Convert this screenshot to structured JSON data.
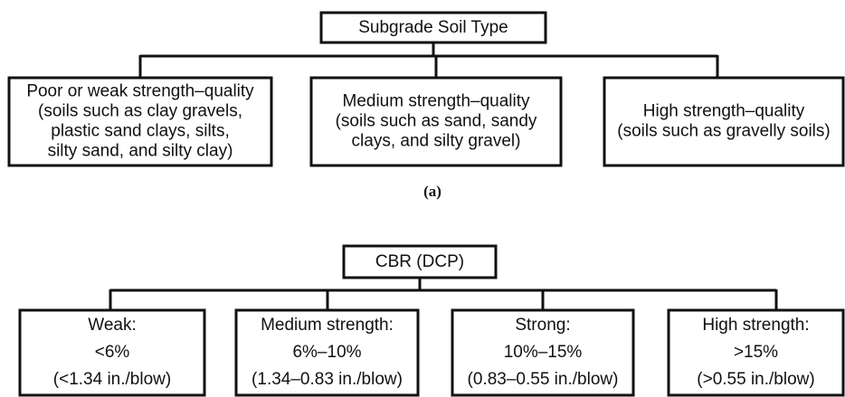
{
  "diagram_a": {
    "root": "Subgrade Soil Type",
    "children": [
      {
        "lines": [
          "Poor or weak strength–quality",
          "(soils such as clay gravels,",
          "plastic sand clays, silts,",
          "silty sand, and silty clay)"
        ]
      },
      {
        "lines": [
          "Medium strength–quality",
          "(soils such as sand, sandy",
          "clays, and silty gravel)"
        ]
      },
      {
        "lines": [
          "High strength–quality",
          "(soils such as gravelly soils)"
        ]
      }
    ],
    "caption": "(a)"
  },
  "diagram_b": {
    "root": "CBR (DCP)",
    "children": [
      {
        "lines": [
          "Weak:",
          "<6%",
          "(<1.34 in./blow)"
        ]
      },
      {
        "lines": [
          "Medium strength:",
          "6%–10%",
          "(1.34–0.83 in./blow)"
        ]
      },
      {
        "lines": [
          "Strong:",
          "10%–15%",
          "(0.83–0.55 in./blow)"
        ]
      },
      {
        "lines": [
          "High strength:",
          ">15%",
          "(>0.55 in./blow)"
        ]
      }
    ]
  }
}
